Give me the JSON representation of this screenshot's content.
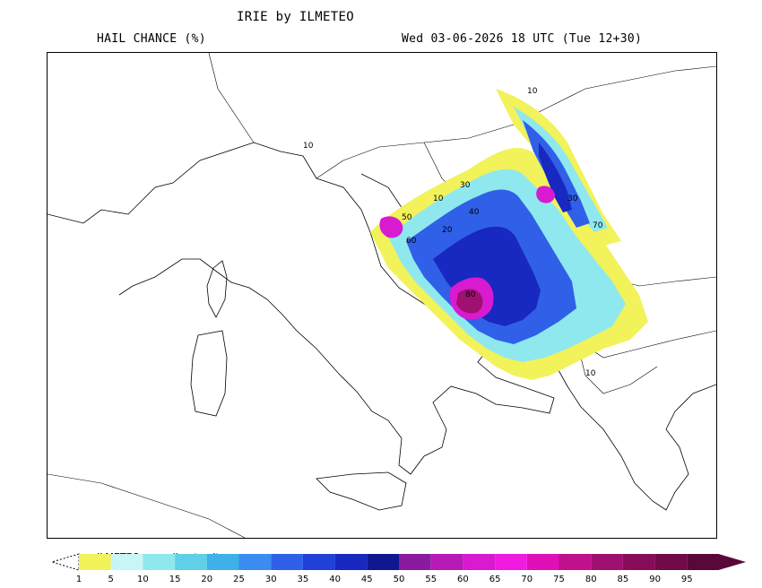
{
  "header": {
    "title": "IRIE by ILMETEO",
    "product": "HAIL CHANCE (%)",
    "valid": "Wed 03-06-2026 18 UTC (Tue 12+30)"
  },
  "legend": {
    "credit": "ILMETEO: www.ilmeteo.it",
    "levels": [
      1,
      5,
      10,
      15,
      20,
      25,
      30,
      35,
      40,
      45,
      50,
      55,
      60,
      65,
      70,
      75,
      80,
      85,
      90,
      95
    ],
    "colors": [
      "#f2f25a",
      "#c8f5f5",
      "#8fe8ee",
      "#60d0e8",
      "#40b0e8",
      "#3a8cf0",
      "#3060e8",
      "#2040d8",
      "#1828c0",
      "#101890",
      "#8a1aa0",
      "#b81ab8",
      "#d81ad0",
      "#f01ae0",
      "#e010b8",
      "#c0108c",
      "#a01070",
      "#880c58",
      "#700a48",
      "#5a0838"
    ]
  },
  "map": {
    "contour_labels": [
      "10",
      "10",
      "10",
      "10",
      "20",
      "30",
      "30",
      "40",
      "50",
      "60",
      "70",
      "80"
    ]
  }
}
